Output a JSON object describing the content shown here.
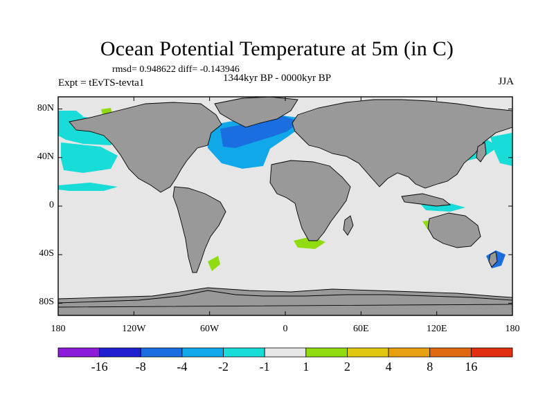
{
  "title": "Ocean Potential Temperature at 5m (in C)",
  "stats": "rmsd= 0.948622 diff= -0.143946",
  "experiment": "Expt = tEvTS-tevta1",
  "period": "1344kyr BP - 0000kyr BP",
  "season": "JJA",
  "map": {
    "lon_range": [
      -180,
      180
    ],
    "lat_range": [
      -90,
      90
    ],
    "lat_ticks": [
      {
        "value": 80,
        "label": "80N"
      },
      {
        "value": 40,
        "label": "40N"
      },
      {
        "value": 0,
        "label": "0"
      },
      {
        "value": -40,
        "label": "40S"
      },
      {
        "value": -80,
        "label": "80S"
      }
    ],
    "lon_ticks": [
      {
        "value": -180,
        "label": "180"
      },
      {
        "value": -120,
        "label": "120W"
      },
      {
        "value": -60,
        "label": "60W"
      },
      {
        "value": 0,
        "label": "0"
      },
      {
        "value": 60,
        "label": "60E"
      },
      {
        "value": 120,
        "label": "120E"
      },
      {
        "value": 180,
        "label": "180"
      }
    ],
    "colors": {
      "ocean": "#e6e6e6",
      "land": "#999999",
      "coast": "#000000"
    }
  },
  "colorbar": {
    "colors": [
      "#8c1cd9",
      "#2020d0",
      "#1a6ee0",
      "#10a8e8",
      "#18dcd8",
      "#e6e6e6",
      "#90dc10",
      "#e0c810",
      "#e8a010",
      "#e06a10",
      "#e03010"
    ],
    "labels": [
      "-16",
      "-8",
      "-4",
      "-2",
      "-1",
      "1",
      "2",
      "4",
      "8",
      "16"
    ]
  }
}
